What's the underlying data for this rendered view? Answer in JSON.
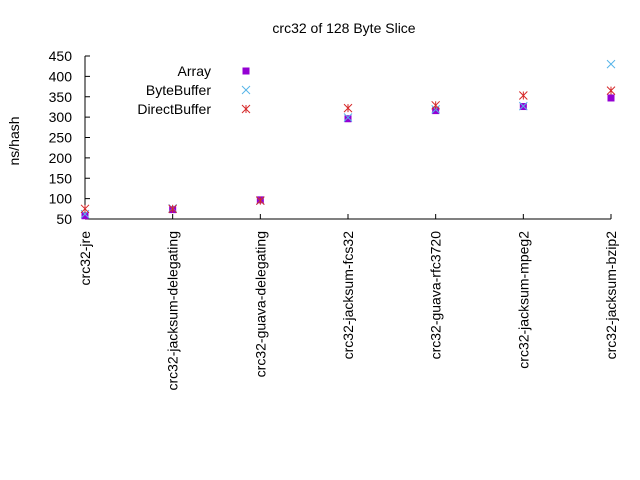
{
  "chart_data": {
    "type": "scatter",
    "title": "crc32 of 128 Byte Slice",
    "xlabel": "",
    "ylabel": "ns/hash",
    "ylim": [
      50,
      450
    ],
    "yticks": [
      50,
      100,
      150,
      200,
      250,
      300,
      350,
      400,
      450
    ],
    "grid": false,
    "legend_position": "top-left",
    "categories": [
      "crc32-jre",
      "crc32-jacksum-delegating",
      "crc32-guava-delegating",
      "crc32-jacksum-fcs32",
      "crc32-guava-rfc3720",
      "crc32-jacksum-mpeg2",
      "crc32-jacksum-bzip2"
    ],
    "series": [
      {
        "name": "Array",
        "marker": "square",
        "color": "#9400d3",
        "values": [
          58,
          73,
          97,
          296,
          316,
          326,
          347
        ]
      },
      {
        "name": "ByteBuffer",
        "marker": "x",
        "color": "#56b4e9",
        "values": [
          62,
          76,
          95,
          299,
          319,
          327,
          430
        ]
      },
      {
        "name": "DirectBuffer",
        "marker": "star",
        "color": "#d62728",
        "values": [
          75,
          75,
          95,
          322,
          329,
          353,
          365
        ]
      }
    ]
  }
}
